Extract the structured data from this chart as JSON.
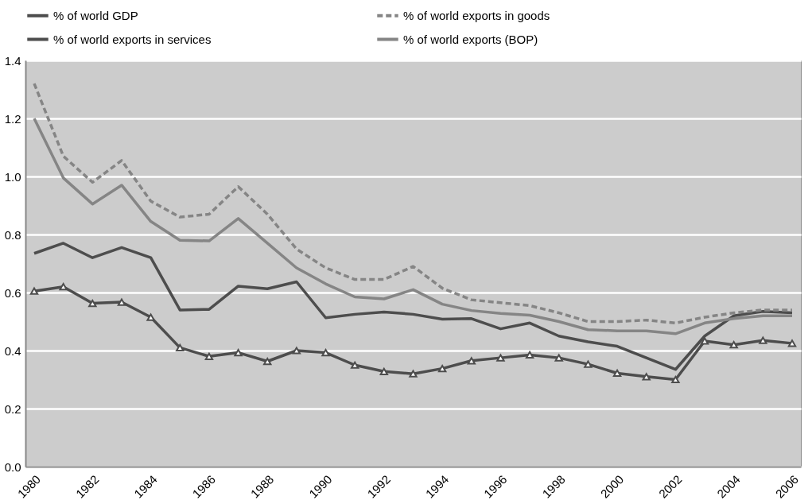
{
  "chart_data": {
    "type": "line",
    "categories": [
      "1980",
      null,
      "1982",
      null,
      "1984",
      null,
      "1986",
      null,
      "1988",
      null,
      "1990",
      null,
      "1992",
      null,
      "1994",
      null,
      "1996",
      null,
      "1998",
      null,
      "2000",
      null,
      "2002",
      null,
      "2004",
      null,
      "2006"
    ],
    "series": [
      {
        "name": "% of world GDP",
        "color": "#4d4d4d",
        "line_style": "solid",
        "marker": "none",
        "values": [
          0.735,
          0.77,
          0.72,
          0.755,
          0.72,
          0.54,
          0.542,
          0.622,
          0.613,
          0.637,
          0.513,
          0.525,
          0.533,
          0.525,
          0.508,
          0.51,
          0.475,
          0.495,
          0.45,
          0.43,
          0.415,
          0.375,
          0.335,
          0.45,
          0.52,
          0.535,
          0.53
        ]
      },
      {
        "name": "% of world exports in goods",
        "color": "#858585",
        "line_style": "dashed",
        "marker": "none",
        "values": [
          1.32,
          1.07,
          0.98,
          1.055,
          0.915,
          0.86,
          0.87,
          0.965,
          0.87,
          0.75,
          0.685,
          0.645,
          0.645,
          0.69,
          0.615,
          0.575,
          0.565,
          0.555,
          0.53,
          0.5,
          0.5,
          0.505,
          0.495,
          0.515,
          0.53,
          0.54,
          0.54
        ]
      },
      {
        "name": "% of world exports in services",
        "color": "#4d4d4d",
        "line_style": "solid",
        "marker": "triangle",
        "values": [
          0.605,
          0.62,
          0.563,
          0.567,
          0.515,
          0.41,
          0.38,
          0.393,
          0.363,
          0.4,
          0.393,
          0.35,
          0.328,
          0.32,
          0.338,
          0.365,
          0.375,
          0.385,
          0.375,
          0.353,
          0.322,
          0.31,
          0.3,
          0.433,
          0.42,
          0.435,
          0.425
        ]
      },
      {
        "name": "% of world exports (BOP)",
        "color": "#858585",
        "line_style": "solid",
        "marker": "none",
        "values": [
          1.2,
          0.995,
          0.905,
          0.97,
          0.845,
          0.78,
          0.778,
          0.855,
          0.77,
          0.685,
          0.63,
          0.585,
          0.578,
          0.61,
          0.56,
          0.538,
          0.528,
          0.522,
          0.5,
          0.472,
          0.468,
          0.468,
          0.458,
          0.495,
          0.51,
          0.52,
          0.52
        ]
      }
    ],
    "ylim": [
      0,
      1.4
    ],
    "yticks": [
      {
        "value": 0,
        "label": "0.0"
      },
      {
        "value": 0.2,
        "label": "0.2"
      },
      {
        "value": 0.4,
        "label": "0.4"
      },
      {
        "value": 0.6,
        "label": "0.6"
      },
      {
        "value": 0.8,
        "label": "0.8"
      },
      {
        "value": 1,
        "label": "1.0"
      },
      {
        "value": 1.2,
        "label": "1.2"
      },
      {
        "value": 1.4,
        "label": "1.4"
      }
    ],
    "grid": "y",
    "legend": "top"
  }
}
